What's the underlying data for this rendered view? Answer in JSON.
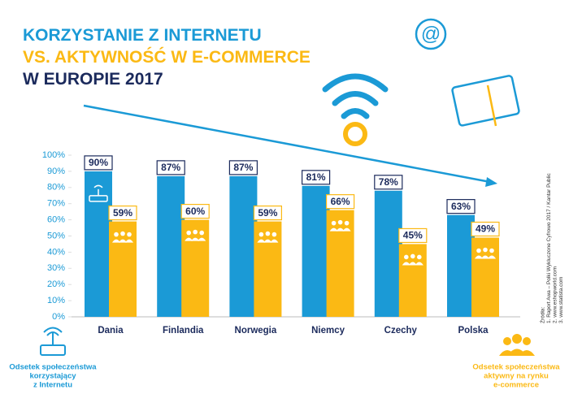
{
  "chart_data": {
    "type": "bar",
    "title": [
      "KORZYSTANIE Z INTERNETU",
      "VS. AKTYWNOŚĆ W E-COMMERCE",
      "W EUROPIE 2017"
    ],
    "categories": [
      "Dania",
      "Finlandia",
      "Norwegia",
      "Niemcy",
      "Czechy",
      "Polska"
    ],
    "series": [
      {
        "name": [
          "Odsetek społeczeństwa",
          "korzystający",
          "z Internetu"
        ],
        "color": "#1b9ad6",
        "values": [
          90,
          87,
          87,
          81,
          78,
          63
        ],
        "value_labels": [
          "90%",
          "87%",
          "87%",
          "81%",
          "78%",
          "63%"
        ]
      },
      {
        "name": [
          "Odsetek społeczeństwa",
          "aktywny na rynku",
          "e-commerce"
        ],
        "color": "#fbb914",
        "values": [
          59,
          60,
          59,
          66,
          45,
          49
        ],
        "value_labels": [
          "59%",
          "60%",
          "59%",
          "66%",
          "45%",
          "49%"
        ]
      }
    ],
    "ylim": [
      0,
      100
    ],
    "yticks": [
      {
        "value": 0,
        "label": "0%"
      },
      {
        "value": 10,
        "label": "10%"
      },
      {
        "value": 20,
        "label": "20%"
      },
      {
        "value": 30,
        "label": "30%"
      },
      {
        "value": 40,
        "label": "40%"
      },
      {
        "value": 50,
        "label": "50%"
      },
      {
        "value": 60,
        "label": "60%"
      },
      {
        "value": 70,
        "label": "70%"
      },
      {
        "value": 80,
        "label": "80%"
      },
      {
        "value": 90,
        "label": "90%"
      },
      {
        "value": 100,
        "label": "100%"
      }
    ],
    "sources": [
      "Źródła:",
      "1. Raport Awa – Polki Wykluczone Cyfrowo 2017 / Kantar Public",
      "2. www.eshopworld.com",
      "3. www.statista.com"
    ]
  }
}
